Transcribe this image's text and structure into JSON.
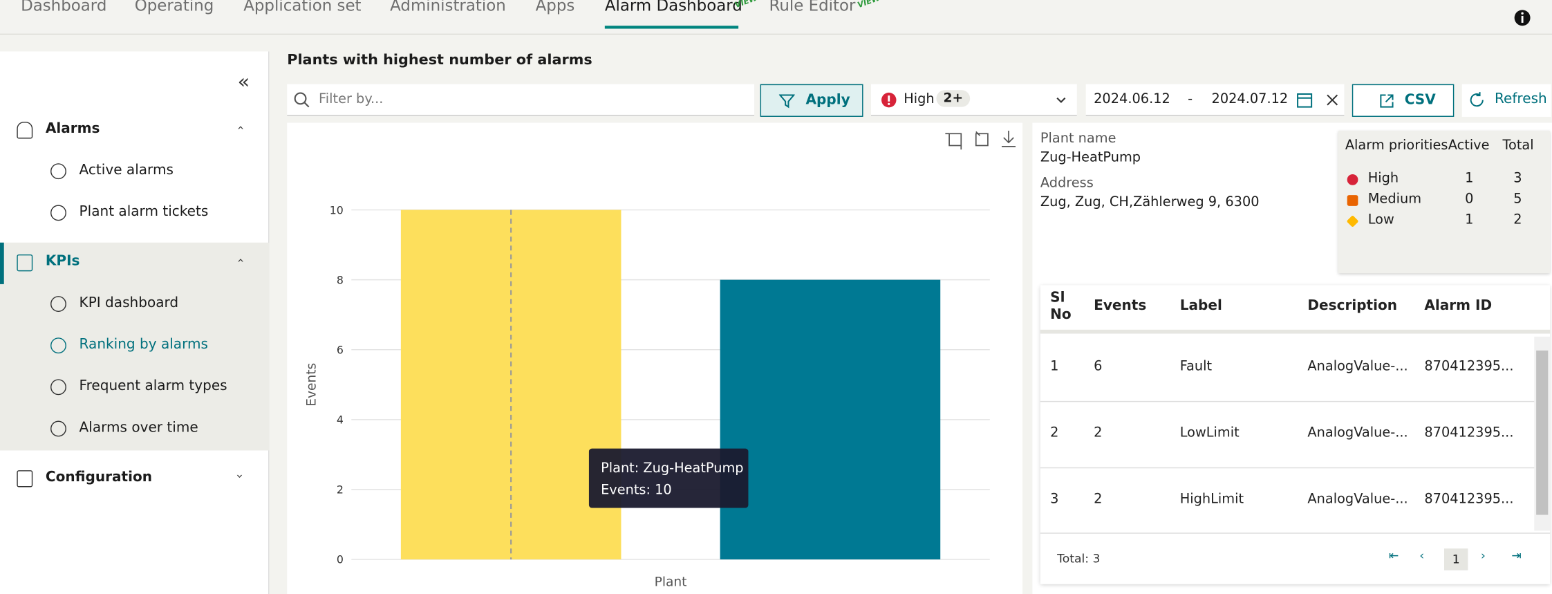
{
  "nav": {
    "tabs": [
      "Dashboard",
      "Operating",
      "Application set",
      "Administration",
      "Apps",
      "Alarm Dashboard",
      "Rule Editor"
    ],
    "badges": [
      "VIEW",
      "VIEW"
    ]
  },
  "sidebar": {
    "groups": [
      {
        "label": "Alarms",
        "items": [
          "Active alarms",
          "Plant alarm tickets"
        ]
      },
      {
        "label": "KPIs",
        "items": [
          "KPI dashboard",
          "Ranking by alarms",
          "Frequent alarm types",
          "Alarms over time"
        ]
      },
      {
        "label": "Configuration",
        "items": []
      }
    ]
  },
  "page_title": "Plants with highest number of alarms",
  "filters": {
    "placeholder": "Filter by...",
    "apply": "Apply",
    "priority": "High",
    "priority_count": "2+",
    "date_from": "2024.06.12",
    "date_separator": "-",
    "date_to": "2024.07.12",
    "csv": "CSV",
    "refresh": "Refresh"
  },
  "chart_data": {
    "type": "bar",
    "categories": [
      null,
      null
    ],
    "series": [
      {
        "name": null,
        "colors": [
          "#fddf5c",
          "#007993"
        ],
        "values": [
          10,
          8
        ]
      }
    ],
    "xlabel": "Plant",
    "ylabel": "Events",
    "ylim": [
      0,
      10
    ],
    "yticks": [
      0,
      2,
      4,
      6,
      8,
      10
    ],
    "grid": true,
    "tooltip": [
      "Plant: Zug-HeatPump",
      "Events: 10"
    ]
  },
  "details": {
    "plant_name_label": "Plant name",
    "plant_name": "Zug-HeatPump",
    "address_label": "Address",
    "address": "Zug, Zug, CH,Zählerweg 9, 6300"
  },
  "priorities": {
    "header": [
      "Alarm priorities",
      "Active",
      "Total"
    ],
    "rows": [
      [
        "High",
        "1",
        "3"
      ],
      [
        "Medium",
        "0",
        "5"
      ],
      [
        "Low",
        "1",
        "2"
      ]
    ]
  },
  "alarms": {
    "header": [
      "Sl No",
      "Events",
      "Label",
      "Description",
      "Alarm ID"
    ],
    "rows": [
      [
        "1",
        "6",
        "Fault",
        "AnalogValue-...",
        "870412395..."
      ],
      [
        "2",
        "2",
        "LowLimit",
        "AnalogValue-...",
        "870412395..."
      ],
      [
        "3",
        "2",
        "HighLimit",
        "AnalogValue-...",
        "870412395..."
      ]
    ],
    "total": "Total: 3",
    "page": "1"
  }
}
